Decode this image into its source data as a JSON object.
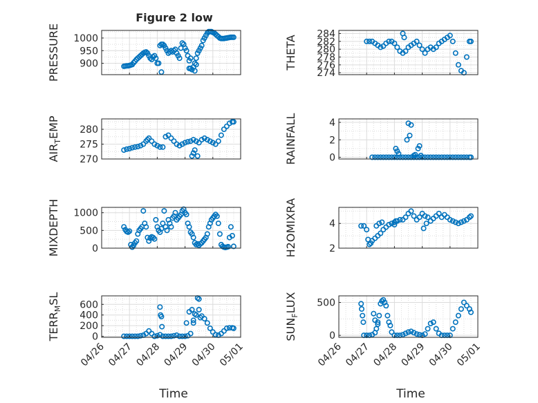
{
  "figure": {
    "title": "Figure 2 low",
    "x_tick_labels": [
      "04/26",
      "04/27",
      "04/28",
      "04/29",
      "04/30",
      "05/01"
    ],
    "x_label": "Time",
    "marker_color": "#0072BD",
    "axes_color": "#262626",
    "grid_color": "#dcdcdc"
  },
  "chart_data": [
    {
      "type": "scatter",
      "id": "pressure",
      "ylabel": "PRESSURE",
      "yticks": [
        "900",
        "950",
        "1000"
      ],
      "ylim": [
        855,
        1030
      ],
      "x": [
        0.8,
        0.85,
        0.9,
        0.95,
        1.0,
        1.05,
        1.1,
        1.15,
        1.2,
        1.25,
        1.3,
        1.35,
        1.4,
        1.45,
        1.5,
        1.55,
        1.6,
        1.65,
        1.7,
        1.75,
        1.8,
        1.85,
        1.9,
        1.95,
        2.0,
        2.05,
        2.1,
        2.15,
        2.2,
        2.25,
        2.3,
        2.35,
        2.4,
        2.45,
        2.5,
        2.55,
        2.6,
        2.65,
        2.7,
        2.75,
        2.8,
        2.85,
        2.9,
        2.95,
        3.0,
        3.05,
        3.1,
        3.15,
        3.2,
        3.25,
        3.3,
        3.35,
        3.4,
        3.45,
        3.5,
        3.55,
        3.6,
        3.65,
        3.7,
        3.75,
        3.8,
        3.85,
        3.9,
        3.95,
        4.0,
        4.05,
        4.1,
        4.15,
        4.2,
        4.25,
        4.3,
        4.35,
        4.4,
        4.45,
        4.5,
        4.55,
        4.6,
        4.65,
        4.7,
        4.75,
        2.15,
        3.15,
        3.2,
        3.35,
        3.4
      ],
      "y": [
        888,
        889,
        890,
        890,
        891,
        893,
        895,
        902,
        908,
        915,
        920,
        925,
        930,
        935,
        940,
        943,
        945,
        940,
        930,
        920,
        915,
        925,
        930,
        920,
        900,
        900,
        970,
        975,
        975,
        970,
        960,
        950,
        940,
        945,
        950,
        945,
        950,
        955,
        940,
        930,
        920,
        960,
        980,
        975,
        960,
        950,
        930,
        910,
        880,
        875,
        885,
        900,
        920,
        940,
        950,
        960,
        970,
        990,
        1000,
        1010,
        1020,
        1025,
        1025,
        1025,
        1022,
        1020,
        1015,
        1010,
        1005,
        1000,
        998,
        998,
        998,
        999,
        1000,
        1001,
        1002,
        1003,
        1003,
        1003,
        865,
        880,
        920,
        870,
        895
      ]
    },
    {
      "type": "scatter",
      "id": "theta",
      "ylabel": "THETA",
      "yticks": [
        "274",
        "276",
        "278",
        "280",
        "282",
        "284"
      ],
      "ylim": [
        273.5,
        284.8
      ],
      "x": [
        1.0,
        1.1,
        1.2,
        1.3,
        1.4,
        1.5,
        1.6,
        1.7,
        1.8,
        1.9,
        2.0,
        2.1,
        2.2,
        2.3,
        2.4,
        2.5,
        2.6,
        2.7,
        2.8,
        2.9,
        3.0,
        3.1,
        3.2,
        3.3,
        3.4,
        3.5,
        3.6,
        3.7,
        3.8,
        3.9,
        4.0,
        4.1,
        4.2,
        4.3,
        4.4,
        4.5,
        4.6,
        4.7,
        4.75,
        2.3,
        2.35
      ],
      "y": [
        282,
        282,
        282,
        281.5,
        281,
        280.5,
        280.8,
        281.5,
        282,
        282,
        281.5,
        280.5,
        279.5,
        279,
        279.5,
        280.5,
        281,
        281.5,
        282,
        281,
        280,
        279,
        280,
        280.5,
        280,
        280.5,
        281.5,
        282,
        282.5,
        283,
        283.5,
        282,
        279,
        276,
        274.5,
        274,
        278,
        282,
        282,
        284,
        283
      ]
    },
    {
      "type": "scatter",
      "id": "air-temp",
      "ylabel": "AIR_TEMP",
      "yticks": [
        "270",
        "275",
        "280"
      ],
      "ylim": [
        270,
        283.5
      ],
      "x": [
        0.8,
        0.9,
        1.0,
        1.1,
        1.2,
        1.3,
        1.4,
        1.5,
        1.6,
        1.65,
        1.7,
        1.8,
        1.9,
        2.0,
        2.1,
        2.2,
        2.3,
        2.4,
        2.5,
        2.6,
        2.7,
        2.8,
        2.9,
        3.0,
        3.1,
        3.2,
        3.3,
        3.4,
        3.5,
        3.6,
        3.7,
        3.8,
        3.9,
        4.0,
        4.1,
        4.2,
        4.3,
        4.4,
        4.5,
        4.6,
        4.7,
        4.75,
        3.25,
        3.3,
        3.35,
        3.45
      ],
      "y": [
        273,
        273.3,
        273.5,
        273.8,
        274,
        274.2,
        274.5,
        275,
        276,
        276.5,
        277,
        276,
        275,
        274.5,
        274,
        274,
        277.5,
        278,
        277,
        276,
        275,
        274.5,
        275,
        275.5,
        275.8,
        276,
        276.5,
        276,
        275.5,
        276.5,
        277,
        276.5,
        276,
        275.5,
        275,
        276,
        278,
        280,
        281,
        282,
        282.5,
        282.5,
        271,
        272,
        273,
        271
      ]
    },
    {
      "type": "scatter",
      "id": "rainfall",
      "ylabel": "RAINFALL",
      "yticks": [
        "0",
        "2",
        "4"
      ],
      "ylim": [
        -0.2,
        4.4
      ],
      "x": [
        1.2,
        1.3,
        1.4,
        1.5,
        1.6,
        1.7,
        1.8,
        1.9,
        2.0,
        2.1,
        2.2,
        2.3,
        2.4,
        2.5,
        2.6,
        2.7,
        2.8,
        2.9,
        3.0,
        3.1,
        3.2,
        3.3,
        3.4,
        3.5,
        3.6,
        3.7,
        3.8,
        3.9,
        4.0,
        4.1,
        4.2,
        4.3,
        4.4,
        4.5,
        4.6,
        4.7,
        4.75,
        2.05,
        2.1,
        2.15,
        2.45,
        2.5,
        2.55,
        2.6,
        2.7,
        2.75,
        2.85,
        2.9,
        2.95
      ],
      "y": [
        0,
        0,
        0,
        0,
        0,
        0,
        0,
        0,
        0,
        0,
        0,
        0,
        0,
        0,
        0,
        0,
        0,
        0,
        0,
        0,
        0,
        0,
        0,
        0,
        0,
        0,
        0,
        0,
        0,
        0,
        0,
        0,
        0,
        0,
        0,
        0,
        0,
        1.0,
        0.7,
        0.4,
        2.0,
        3.9,
        2.5,
        3.7,
        0.2,
        0.3,
        1.0,
        1.3,
        0.2
      ]
    },
    {
      "type": "scatter",
      "id": "mixdepth",
      "ylabel": "MIXDEPTH",
      "yticks": [
        "0",
        "500",
        "1000"
      ],
      "ylim": [
        0,
        1150
      ],
      "x": [
        0.8,
        0.85,
        0.9,
        0.95,
        1.0,
        1.05,
        1.1,
        1.15,
        1.2,
        1.25,
        1.3,
        1.35,
        1.4,
        1.45,
        1.5,
        1.55,
        1.6,
        1.65,
        1.7,
        1.75,
        1.8,
        1.85,
        1.9,
        1.95,
        2.0,
        2.05,
        2.1,
        2.15,
        2.2,
        2.25,
        2.3,
        2.35,
        2.4,
        2.45,
        2.5,
        2.55,
        2.6,
        2.65,
        2.7,
        2.75,
        2.8,
        2.85,
        2.9,
        2.95,
        3.0,
        3.05,
        3.1,
        3.15,
        3.2,
        3.25,
        3.3,
        3.35,
        3.4,
        3.45,
        3.5,
        3.55,
        3.6,
        3.65,
        3.7,
        3.75,
        3.8,
        3.85,
        3.9,
        3.95,
        4.0,
        4.05,
        4.1,
        4.15,
        4.2,
        4.25,
        4.3,
        4.35,
        4.4,
        4.45,
        4.5,
        4.55,
        4.6,
        4.65,
        4.7,
        4.75
      ],
      "y": [
        600,
        520,
        470,
        450,
        480,
        100,
        30,
        80,
        150,
        200,
        400,
        500,
        550,
        600,
        1050,
        700,
        600,
        300,
        200,
        280,
        320,
        300,
        260,
        800,
        600,
        500,
        450,
        550,
        700,
        1050,
        600,
        500,
        800,
        700,
        600,
        850,
        900,
        1000,
        800,
        850,
        900,
        950,
        1050,
        1100,
        1000,
        950,
        700,
        600,
        450,
        400,
        300,
        150,
        100,
        120,
        80,
        120,
        150,
        200,
        250,
        300,
        400,
        600,
        700,
        800,
        850,
        900,
        950,
        900,
        700,
        400,
        100,
        50,
        30,
        20,
        30,
        40,
        300,
        600,
        350,
        50
      ]
    },
    {
      "type": "scatter",
      "id": "h2omixra",
      "ylabel": "H2OMIXRA",
      "yticks": [
        "2",
        "4"
      ],
      "ylim": [
        2.0,
        5.3
      ],
      "x": [
        0.8,
        0.9,
        1.0,
        1.05,
        1.1,
        1.15,
        1.2,
        1.3,
        1.4,
        1.5,
        1.6,
        1.7,
        1.8,
        1.9,
        2.0,
        2.1,
        2.2,
        2.3,
        2.4,
        2.5,
        2.6,
        2.7,
        2.8,
        2.9,
        3.0,
        3.1,
        3.2,
        3.3,
        3.4,
        3.5,
        3.6,
        3.7,
        3.8,
        3.9,
        4.0,
        4.1,
        4.2,
        4.3,
        4.4,
        4.5,
        4.6,
        4.7,
        4.75,
        1.35,
        1.45,
        1.55,
        2.0,
        2.05,
        3.05,
        3.15
      ],
      "y": [
        3.8,
        3.8,
        3.5,
        2.7,
        2.3,
        2.4,
        2.6,
        2.8,
        3.0,
        3.2,
        3.5,
        3.7,
        3.9,
        4.0,
        4.1,
        4.2,
        4.3,
        4.3,
        4.5,
        4.8,
        5.0,
        4.6,
        4.3,
        4.5,
        4.8,
        4.6,
        4.5,
        4.2,
        4.4,
        4.6,
        4.8,
        4.5,
        4.7,
        4.5,
        4.3,
        4.2,
        4.1,
        4.0,
        4.1,
        4.2,
        4.3,
        4.5,
        4.6,
        3.8,
        4.0,
        4.1,
        3.9,
        4.2,
        3.6,
        4.0
      ]
    },
    {
      "type": "scatter",
      "id": "terr-msl",
      "ylabel": "TERR_MSL",
      "yticks": [
        "0",
        "200",
        "400",
        "600"
      ],
      "ylim": [
        -20,
        760
      ],
      "x": [
        0.8,
        0.9,
        1.0,
        1.1,
        1.2,
        1.3,
        1.4,
        1.5,
        1.6,
        1.7,
        1.8,
        1.9,
        2.0,
        2.1,
        2.2,
        2.3,
        2.4,
        2.5,
        2.6,
        2.7,
        2.8,
        2.9,
        3.0,
        3.1,
        3.2,
        3.3,
        3.4,
        3.5,
        3.6,
        3.7,
        3.8,
        3.9,
        4.0,
        4.1,
        4.2,
        4.3,
        4.4,
        4.5,
        4.6,
        4.7,
        4.75,
        2.1,
        2.12,
        2.15,
        2.17,
        3.05,
        3.15,
        3.25,
        3.3,
        3.35,
        3.45,
        3.5,
        3.55
      ],
      "y": [
        0,
        0,
        0,
        0,
        0,
        0,
        10,
        20,
        50,
        100,
        50,
        0,
        10,
        30,
        0,
        0,
        0,
        0,
        10,
        20,
        0,
        0,
        0,
        10,
        50,
        300,
        400,
        500,
        380,
        330,
        250,
        150,
        80,
        30,
        20,
        50,
        100,
        150,
        160,
        160,
        150,
        550,
        400,
        370,
        180,
        250,
        460,
        500,
        250,
        420,
        720,
        700,
        350
      ]
    },
    {
      "type": "scatter",
      "id": "sun-flux",
      "ylabel": "SUN_FLUX",
      "yticks": [
        "0",
        "500"
      ],
      "ylim": [
        -30,
        600
      ],
      "x": [
        0.8,
        0.82,
        0.85,
        0.88,
        0.9,
        1.0,
        1.1,
        1.2,
        1.3,
        1.35,
        1.4,
        1.45,
        1.5,
        1.55,
        1.6,
        1.65,
        1.7,
        1.75,
        1.8,
        1.85,
        1.9,
        2.0,
        2.1,
        2.2,
        2.3,
        2.4,
        2.5,
        2.6,
        2.7,
        2.8,
        2.9,
        3.0,
        3.1,
        3.2,
        3.3,
        3.4,
        3.5,
        3.6,
        3.7,
        3.8,
        3.9,
        4.0,
        4.1,
        4.2,
        4.3,
        4.4,
        4.5,
        4.6,
        4.7,
        4.75,
        1.25,
        1.3,
        1.4
      ],
      "y": [
        480,
        400,
        300,
        200,
        0,
        0,
        0,
        10,
        40,
        100,
        200,
        300,
        480,
        520,
        540,
        500,
        450,
        300,
        200,
        150,
        50,
        0,
        0,
        0,
        10,
        30,
        50,
        60,
        40,
        20,
        10,
        0,
        20,
        100,
        180,
        200,
        100,
        30,
        0,
        0,
        0,
        0,
        100,
        200,
        300,
        400,
        500,
        450,
        400,
        350,
        330,
        230,
        170
      ]
    }
  ]
}
